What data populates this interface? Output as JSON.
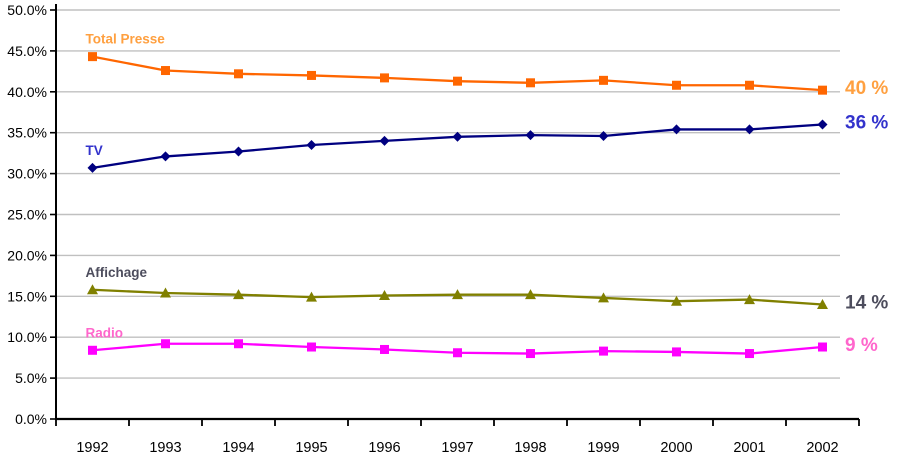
{
  "chart_data": {
    "type": "line",
    "title": "",
    "xlabel": "",
    "ylabel": "",
    "categories": [
      "1992",
      "1993",
      "1994",
      "1995",
      "1996",
      "1997",
      "1998",
      "1999",
      "2000",
      "2001",
      "2002"
    ],
    "series": [
      {
        "name": "Total Presse",
        "values": [
          44.3,
          42.6,
          42.2,
          42.0,
          41.7,
          41.3,
          41.1,
          41.4,
          40.8,
          40.8,
          40.2
        ],
        "color": "#FF6600",
        "label_color": "#FFA040",
        "marker": "square",
        "end_label": "40 %"
      },
      {
        "name": "TV",
        "values": [
          30.7,
          32.1,
          32.7,
          33.5,
          34.0,
          34.5,
          34.7,
          34.6,
          35.4,
          35.4,
          36.0
        ],
        "color": "#000080",
        "label_color": "#3333CC",
        "marker": "diamond",
        "end_label": "36 %"
      },
      {
        "name": "Affichage",
        "values": [
          15.8,
          15.4,
          15.2,
          14.9,
          15.1,
          15.2,
          15.2,
          14.8,
          14.4,
          14.6,
          14.0
        ],
        "color": "#808000",
        "label_color": "#4D4D5D",
        "marker": "triangle",
        "end_label": "14 %"
      },
      {
        "name": "Radio",
        "values": [
          8.4,
          9.2,
          9.2,
          8.8,
          8.5,
          8.1,
          8.0,
          8.3,
          8.2,
          8.0,
          8.8
        ],
        "color": "#FF00FF",
        "label_color": "#FF66CC",
        "marker": "square",
        "end_label": "9 %"
      }
    ],
    "ylim": [
      0,
      50
    ],
    "ytick_step": 5,
    "ytick_labels": [
      "0.0%",
      "5.0%",
      "10.0%",
      "15.0%",
      "20.0%",
      "25.0%",
      "30.0%",
      "35.0%",
      "40.0%",
      "45.0%",
      "50.0%"
    ],
    "grid": true,
    "legend_position": "inline-labels",
    "gridline_color": "#C0C0C0",
    "axis_color": "#000000",
    "background": "#FFFFFF"
  }
}
